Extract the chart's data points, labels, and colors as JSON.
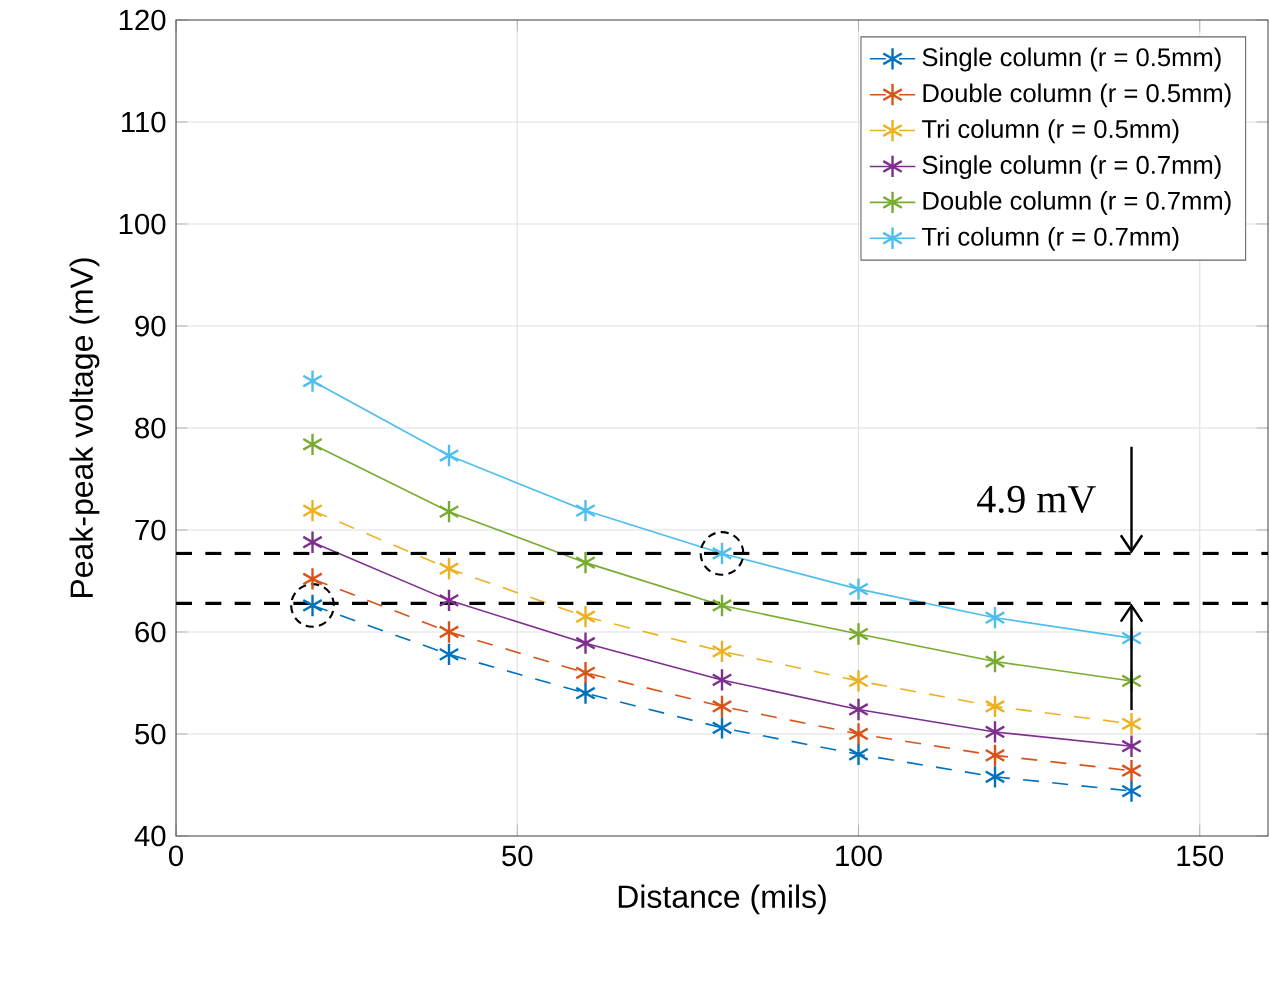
{
  "chart_data": {
    "type": "line",
    "xlabel": "Distance (mils)",
    "ylabel": "Peak-peak voltage (mV)",
    "x": [
      20,
      40,
      60,
      80,
      100,
      120,
      140
    ],
    "series": [
      {
        "name": "Single column (r = 0.5mm)",
        "color": "#0072bd",
        "line_style": "dashed",
        "values": [
          62.6,
          57.8,
          54.0,
          50.6,
          48.0,
          45.8,
          44.4
        ]
      },
      {
        "name": "Double column (r = 0.5mm)",
        "color": "#d95319",
        "line_style": "dashed",
        "values": [
          65.2,
          60.0,
          56.0,
          52.7,
          50.0,
          47.9,
          46.4
        ]
      },
      {
        "name": "Tri column (r = 0.5mm)",
        "color": "#edb120",
        "line_style": "dashed",
        "values": [
          71.9,
          66.2,
          61.5,
          58.1,
          55.2,
          52.7,
          51.0
        ]
      },
      {
        "name": "Single column (r = 0.7mm)",
        "color": "#7e2f8e",
        "line_style": "solid",
        "values": [
          68.8,
          63.1,
          58.9,
          55.3,
          52.4,
          50.2,
          48.8
        ]
      },
      {
        "name": "Double column (r = 0.7mm)",
        "color": "#77ac30",
        "line_style": "solid",
        "values": [
          78.4,
          71.8,
          66.8,
          62.6,
          59.8,
          57.1,
          55.2
        ]
      },
      {
        "name": "Tri column (r = 0.7mm)",
        "color": "#4dbeee",
        "line_style": "solid",
        "values": [
          84.6,
          77.3,
          71.9,
          67.7,
          64.2,
          61.4,
          59.4
        ]
      }
    ],
    "marker": "cross",
    "xlim": [
      0,
      160
    ],
    "ylim": [
      40,
      120
    ],
    "xticks": [
      0,
      50,
      100,
      150
    ],
    "yticks": [
      40,
      50,
      60,
      70,
      80,
      90,
      100,
      110,
      120
    ],
    "grid": true,
    "legend": "top right",
    "ref_lines": [
      {
        "axis": "y",
        "value": 67.7,
        "color": "#000000",
        "line_style": "dashed"
      },
      {
        "axis": "y",
        "value": 62.8,
        "color": "#000000",
        "line_style": "dashed"
      }
    ],
    "annotations": [
      {
        "text": "4.9 mV",
        "x": 140,
        "y": 67.7
      }
    ]
  }
}
